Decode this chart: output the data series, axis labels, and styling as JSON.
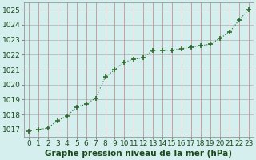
{
  "x": [
    0,
    1,
    2,
    3,
    4,
    5,
    6,
    7,
    8,
    9,
    10,
    11,
    12,
    13,
    14,
    15,
    16,
    17,
    18,
    19,
    20,
    21,
    22,
    23
  ],
  "y": [
    1016.9,
    1017.0,
    1017.1,
    1017.6,
    1017.9,
    1018.5,
    1018.7,
    1019.1,
    1020.5,
    1021.0,
    1021.5,
    1021.7,
    1021.8,
    1022.3,
    1022.3,
    1022.3,
    1022.4,
    1022.5,
    1022.6,
    1022.7,
    1023.1,
    1023.5,
    1024.3,
    1025.0
  ],
  "line_color": "#2d6a2d",
  "marker": "+",
  "marker_size": 5,
  "line_width": 0.8,
  "background_color": "#d5eeee",
  "grid_color_h": "#b0b0b0",
  "grid_color_v": "#c08080",
  "xlabel": "Graphe pression niveau de la mer (hPa)",
  "xlabel_fontsize": 7.5,
  "xlabel_color": "#1a4a1a",
  "xtick_labels": [
    "0",
    "1",
    "2",
    "3",
    "4",
    "5",
    "6",
    "7",
    "8",
    "9",
    "10",
    "11",
    "12",
    "13",
    "14",
    "15",
    "16",
    "17",
    "18",
    "19",
    "20",
    "21",
    "22",
    "23"
  ],
  "ytick_min": 1017,
  "ytick_max": 1025,
  "ytick_step": 1,
  "ylim_min": 1016.5,
  "ylim_max": 1025.5,
  "xlim_min": -0.5,
  "xlim_max": 23.5,
  "tick_fontsize": 6.5,
  "tick_color": "#1a4a1a"
}
